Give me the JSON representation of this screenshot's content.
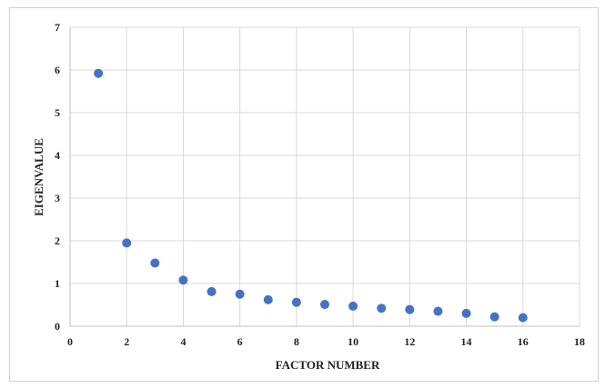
{
  "chart_data": {
    "type": "scatter",
    "title": "",
    "xlabel": "FACTOR NUMBER",
    "ylabel": "EIGENVALUE",
    "xlim": [
      0,
      18
    ],
    "ylim": [
      0,
      7
    ],
    "x_ticks": [
      0,
      2,
      4,
      6,
      8,
      10,
      12,
      14,
      16,
      18
    ],
    "y_ticks": [
      0,
      1,
      2,
      3,
      4,
      5,
      6,
      7
    ],
    "grid": true,
    "marker_color": "#4472C4",
    "grid_color": "#d9d9d9",
    "series": [
      {
        "points": [
          {
            "x": 1,
            "y": 5.92
          },
          {
            "x": 2,
            "y": 1.95
          },
          {
            "x": 3,
            "y": 1.48
          },
          {
            "x": 4,
            "y": 1.08
          },
          {
            "x": 5,
            "y": 0.81
          },
          {
            "x": 6,
            "y": 0.75
          },
          {
            "x": 7,
            "y": 0.62
          },
          {
            "x": 8,
            "y": 0.56
          },
          {
            "x": 9,
            "y": 0.51
          },
          {
            "x": 10,
            "y": 0.47
          },
          {
            "x": 11,
            "y": 0.42
          },
          {
            "x": 12,
            "y": 0.39
          },
          {
            "x": 13,
            "y": 0.35
          },
          {
            "x": 14,
            "y": 0.3
          },
          {
            "x": 15,
            "y": 0.22
          },
          {
            "x": 16,
            "y": 0.2
          }
        ]
      }
    ]
  }
}
